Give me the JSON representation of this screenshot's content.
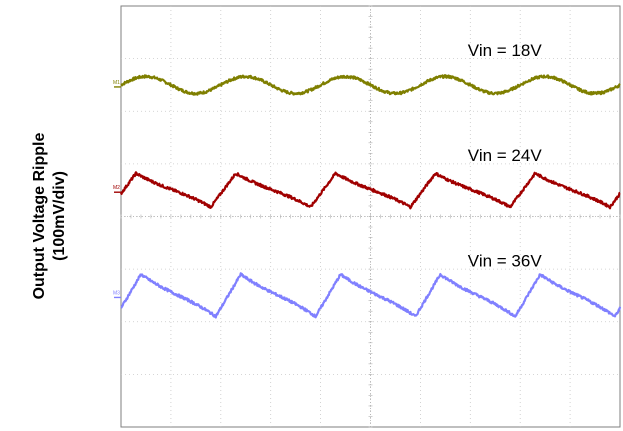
{
  "chart_data": {
    "type": "line",
    "ylabel_line1": "Output Voltage Ripple",
    "ylabel_line2": "(100mV/div)",
    "xlim": [
      0,
      10
    ],
    "ylim": [
      0,
      8
    ],
    "grid": true,
    "series": [
      {
        "label": "Vin = 18V",
        "color": "#7f7f00",
        "marker_label": "M1",
        "offset": 6.5,
        "shape": "sine",
        "period": 2.0,
        "phase": 0.0,
        "amplitude": 0.16
      },
      {
        "label": "Vin = 24V",
        "color": "#a00000",
        "marker_label": "M2",
        "offset": 4.5,
        "shape": "sawtooth",
        "period": 2.0,
        "phase": 0.1,
        "amplitude": 0.32
      },
      {
        "label": "Vin = 36V",
        "color": "#8080ff",
        "marker_label": "M3",
        "offset": 2.5,
        "shape": "sawtooth",
        "period": 2.0,
        "phase": 0.05,
        "amplitude": 0.4
      }
    ]
  }
}
